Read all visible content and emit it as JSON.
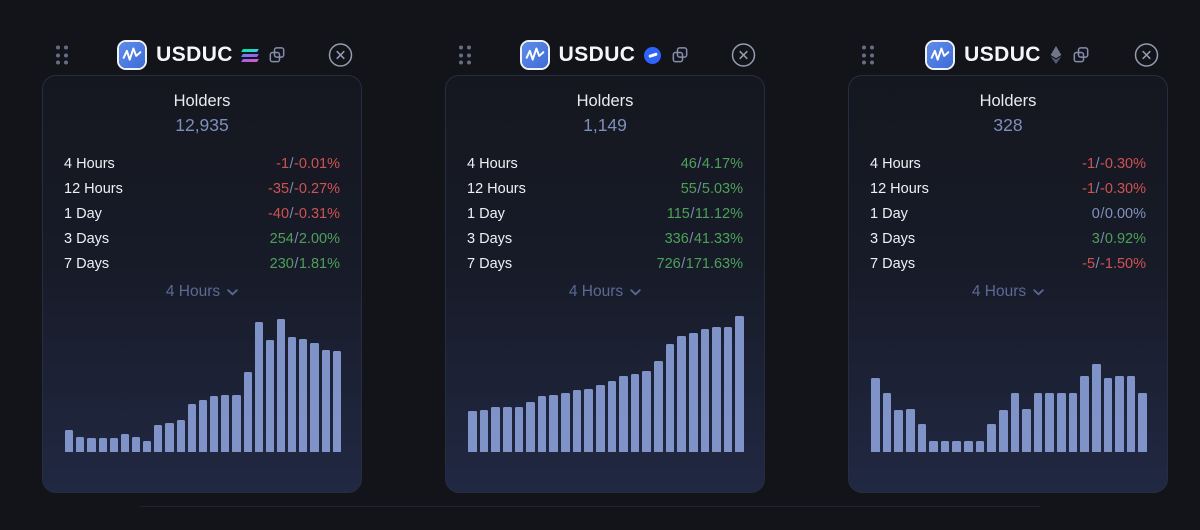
{
  "separator": "/",
  "colors": {
    "up": "#4da05a",
    "down": "#d05252",
    "flat": "#8292bd",
    "bar": "#8093c9",
    "holders_number": "#7e8fbc"
  },
  "icons": {
    "drag_handle": "six-dot-grip",
    "copy": "overlapping-squares",
    "close": "circled-x",
    "chevron_down": "v",
    "app_logo": "blue-waveform-badge"
  },
  "cards": [
    {
      "title": "USDUC",
      "chain_icon": "solana-icon",
      "metric_label": "Holders",
      "holders_count": "12,935",
      "timeframe": "4 Hours",
      "rows": [
        {
          "label": "4 Hours",
          "change": "-1",
          "pct": "-0.01%",
          "trend": "down"
        },
        {
          "label": "12 Hours",
          "change": "-35",
          "pct": "-0.27%",
          "trend": "down"
        },
        {
          "label": "1 Day",
          "change": "-40",
          "pct": "-0.31%",
          "trend": "down"
        },
        {
          "label": "3 Days",
          "change": "254",
          "pct": "2.00%",
          "trend": "up"
        },
        {
          "label": "7 Days",
          "change": "230",
          "pct": "1.81%",
          "trend": "up"
        }
      ],
      "bars": [
        0.16,
        0.11,
        0.1,
        0.1,
        0.1,
        0.13,
        0.11,
        0.08,
        0.19,
        0.21,
        0.23,
        0.34,
        0.37,
        0.4,
        0.41,
        0.41,
        0.57,
        0.93,
        0.8,
        0.95,
        0.82,
        0.81,
        0.78,
        0.73,
        0.72
      ]
    },
    {
      "title": "USDUC",
      "chain_icon": "circle-dash-icon",
      "metric_label": "Holders",
      "holders_count": "1,149",
      "timeframe": "4 Hours",
      "rows": [
        {
          "label": "4 Hours",
          "change": "46",
          "pct": "4.17%",
          "trend": "up"
        },
        {
          "label": "12 Hours",
          "change": "55",
          "pct": "5.03%",
          "trend": "up"
        },
        {
          "label": "1 Day",
          "change": "115",
          "pct": "11.12%",
          "trend": "up"
        },
        {
          "label": "3 Days",
          "change": "336",
          "pct": "41.33%",
          "trend": "up"
        },
        {
          "label": "7 Days",
          "change": "726",
          "pct": "171.63%",
          "trend": "up"
        }
      ],
      "bars": [
        0.29,
        0.3,
        0.32,
        0.32,
        0.32,
        0.36,
        0.4,
        0.41,
        0.42,
        0.44,
        0.45,
        0.48,
        0.51,
        0.54,
        0.56,
        0.58,
        0.65,
        0.77,
        0.83,
        0.85,
        0.88,
        0.89,
        0.89,
        0.97
      ]
    },
    {
      "title": "USDUC",
      "chain_icon": "ethereum-icon",
      "metric_label": "Holders",
      "holders_count": "328",
      "timeframe": "4 Hours",
      "rows": [
        {
          "label": "4 Hours",
          "change": "-1",
          "pct": "-0.30%",
          "trend": "down"
        },
        {
          "label": "12 Hours",
          "change": "-1",
          "pct": "-0.30%",
          "trend": "down"
        },
        {
          "label": "1 Day",
          "change": "0",
          "pct": "0.00%",
          "trend": "flat"
        },
        {
          "label": "3 Days",
          "change": "3",
          "pct": "0.92%",
          "trend": "up"
        },
        {
          "label": "7 Days",
          "change": "-5",
          "pct": "-1.50%",
          "trend": "down"
        }
      ],
      "bars": [
        0.53,
        0.42,
        0.3,
        0.31,
        0.2,
        0.08,
        0.08,
        0.08,
        0.08,
        0.08,
        0.2,
        0.3,
        0.42,
        0.31,
        0.42,
        0.42,
        0.42,
        0.42,
        0.54,
        0.63,
        0.53,
        0.54,
        0.54,
        0.42
      ]
    }
  ]
}
